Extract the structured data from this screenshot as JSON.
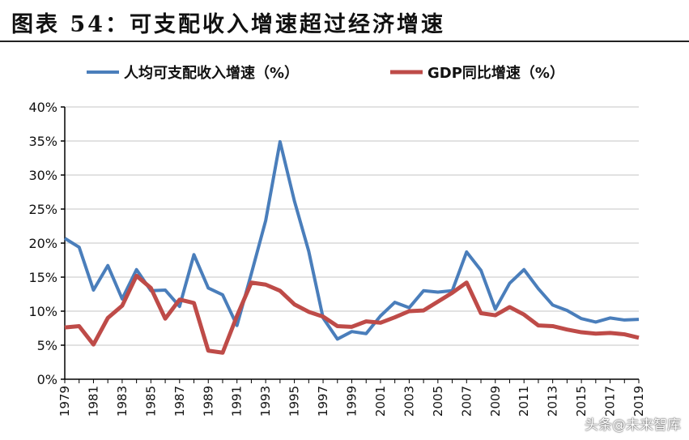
{
  "title": "图表 54：可支配收入增速超过经济增速",
  "watermark": "头条@未来智库",
  "chart_data": {
    "type": "line",
    "x": [
      1979,
      1980,
      1981,
      1982,
      1983,
      1984,
      1985,
      1986,
      1987,
      1988,
      1989,
      1990,
      1991,
      1992,
      1993,
      1994,
      1995,
      1996,
      1997,
      1998,
      1999,
      2000,
      2001,
      2002,
      2003,
      2004,
      2005,
      2006,
      2007,
      2008,
      2009,
      2010,
      2011,
      2012,
      2013,
      2014,
      2015,
      2016,
      2017,
      2018,
      2019
    ],
    "x_tick_labels": [
      "1979",
      "1981",
      "1983",
      "1985",
      "1987",
      "1989",
      "1991",
      "1993",
      "1995",
      "1997",
      "1999",
      "2001",
      "2003",
      "2005",
      "2007",
      "2009",
      "2011",
      "2013",
      "2015",
      "2017",
      "2019"
    ],
    "y_tick_labels": [
      "0%",
      "5%",
      "10%",
      "15%",
      "20%",
      "25%",
      "30%",
      "35%",
      "40%"
    ],
    "ylim": [
      0,
      40
    ],
    "grid": true,
    "legend_position": "top",
    "series": [
      {
        "name": "人均可支配收入增速（%）",
        "color": "#4a7ebb",
        "values": [
          20.7,
          19.4,
          13.1,
          16.7,
          11.8,
          16.1,
          13.0,
          13.1,
          10.7,
          18.3,
          13.4,
          12.4,
          7.9,
          15.5,
          23.3,
          34.9,
          26.2,
          18.8,
          9.0,
          5.9,
          7.0,
          6.7,
          9.3,
          11.3,
          10.5,
          13.0,
          12.8,
          13.0,
          18.7,
          16.0,
          10.3,
          14.1,
          16.1,
          13.3,
          10.9,
          10.1,
          8.9,
          8.4,
          9.0,
          8.7,
          8.8
        ]
      },
      {
        "name": "GDP同比增速（%）",
        "color": "#be4b48",
        "values": [
          7.6,
          7.8,
          5.1,
          9.0,
          10.8,
          15.2,
          13.4,
          8.9,
          11.7,
          11.2,
          4.2,
          3.9,
          9.3,
          14.2,
          13.9,
          13.0,
          11.0,
          9.9,
          9.2,
          7.8,
          7.7,
          8.5,
          8.3,
          9.1,
          10.0,
          10.1,
          11.4,
          12.7,
          14.2,
          9.7,
          9.4,
          10.6,
          9.5,
          7.9,
          7.8,
          7.3,
          6.9,
          6.7,
          6.8,
          6.6,
          6.1
        ]
      }
    ]
  }
}
